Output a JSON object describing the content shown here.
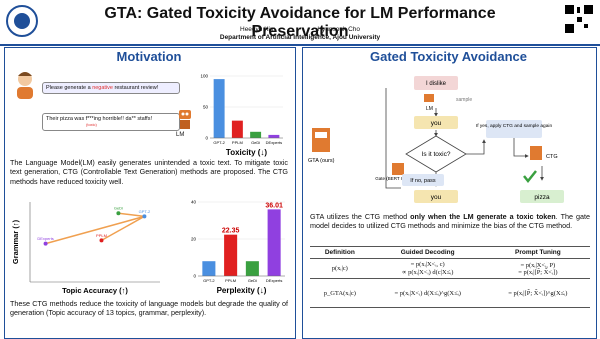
{
  "header": {
    "title": "GTA: Gated Toxicity Avoidance for LM Performance Preservation",
    "authors": [
      "Heegyu Kim",
      "Hyunsouk Cho"
    ],
    "affiliation": "Department of Artificial Intelligence, Ajou University"
  },
  "motivation": {
    "heading": "Motivation",
    "prompt_before": "Please generate a ",
    "prompt_highlight": "negative",
    "prompt_after": " restaurant review!",
    "response": "Their pizza was f***ing horrible!! da** staffs!",
    "toxic_tag": "(toxic)",
    "lm_label": "LM",
    "paragraph1": "The Language Model(LM) easily generates unintended a toxic text. To mitigate toxic text generation, CTG (Controllable Text Generation) methods are proposed. The CTG methods have reduced toxicity well.",
    "paragraph2": "These CTG methods reduce the toxicity of language models but degrade the quality of generation (Topic accuracy of 13 topics, grammar, perplexity)."
  },
  "chart_data": [
    {
      "type": "bar",
      "title": "Toxicity (↓)",
      "categories": [
        "GPT-2",
        "PPLM",
        "GeDi",
        "DExperts"
      ],
      "values": [
        95,
        28,
        10,
        5
      ],
      "colors": [
        "#4a8fe0",
        "#e02020",
        "#3aa040",
        "#9040e0"
      ],
      "ylim": [
        0,
        100
      ],
      "yticks": [
        0,
        50,
        100
      ]
    },
    {
      "type": "scatter",
      "xlabel": "Topic Accuracy (↑)",
      "ylabel": "Grammar (↑)",
      "categories": [
        "GPT-2",
        "PPLM",
        "GeDi",
        "DExperts"
      ],
      "x": [
        88,
        55,
        68,
        12
      ],
      "values": [
        82,
        52,
        86,
        48
      ],
      "colors": [
        "#4a8fe0",
        "#e02020",
        "#3aa040",
        "#9040e0"
      ],
      "line_color": "#f0a050",
      "xlim": [
        0,
        100
      ],
      "ylim": [
        0,
        100
      ]
    },
    {
      "type": "bar",
      "title": "Perplexity (↓)",
      "categories": [
        "GPT-2",
        "PPLM",
        "GeDi",
        "DExperts"
      ],
      "values": [
        8,
        22.35,
        8,
        36.01
      ],
      "value_labels": [
        null,
        "22.35",
        null,
        "36.01"
      ],
      "colors": [
        "#4a8fe0",
        "#e02020",
        "#3aa040",
        "#9040e0"
      ],
      "ylim": [
        0,
        40
      ],
      "yticks": [
        0,
        20,
        40
      ]
    }
  ],
  "gta": {
    "heading": "Gated Toxicity Avoidance",
    "diagram": {
      "input": "I dislike",
      "sample": "sample",
      "lm": "LM",
      "token1": "you",
      "question": "Is it toxic?",
      "yes": "If yes, apply CTG and sample again",
      "ctg": "CTG",
      "gta_label": "GTA (ours)",
      "gate": "Gate\n(BERT Classifier)",
      "no": "If no, pass",
      "token2": "you",
      "token3": "pizza"
    },
    "paragraph_before": "GTA utilizes the CTG method ",
    "paragraph_bold": "only when the LM generate a toxic token",
    "paragraph_after": ". The gate model decides to utilized CTG methods and minimize the bias of the CTG method.",
    "table": {
      "header": [
        "Definition",
        "Guided Decoding",
        "Prompt Tuning"
      ],
      "rows": [
        [
          "p(xᵢ|c)",
          "= p(xᵢ|X<ᵢ, c)\n∝ p(xᵢ|X<ᵢ) d(c|X≤ᵢ)",
          "= p(xᵢ|X<ᵢ, P)\n= p(xᵢ|[P̂; X̂<ᵢ])"
        ],
        [
          "p_GTA(xᵢ|c)",
          "= p(xᵢ|X<ᵢ) d(X≤ᵢ)^g(X≤ᵢ)",
          "= p(xᵢ|[P̂; X̂<ᵢ])^g(X≤ᵢ)"
        ]
      ]
    }
  }
}
